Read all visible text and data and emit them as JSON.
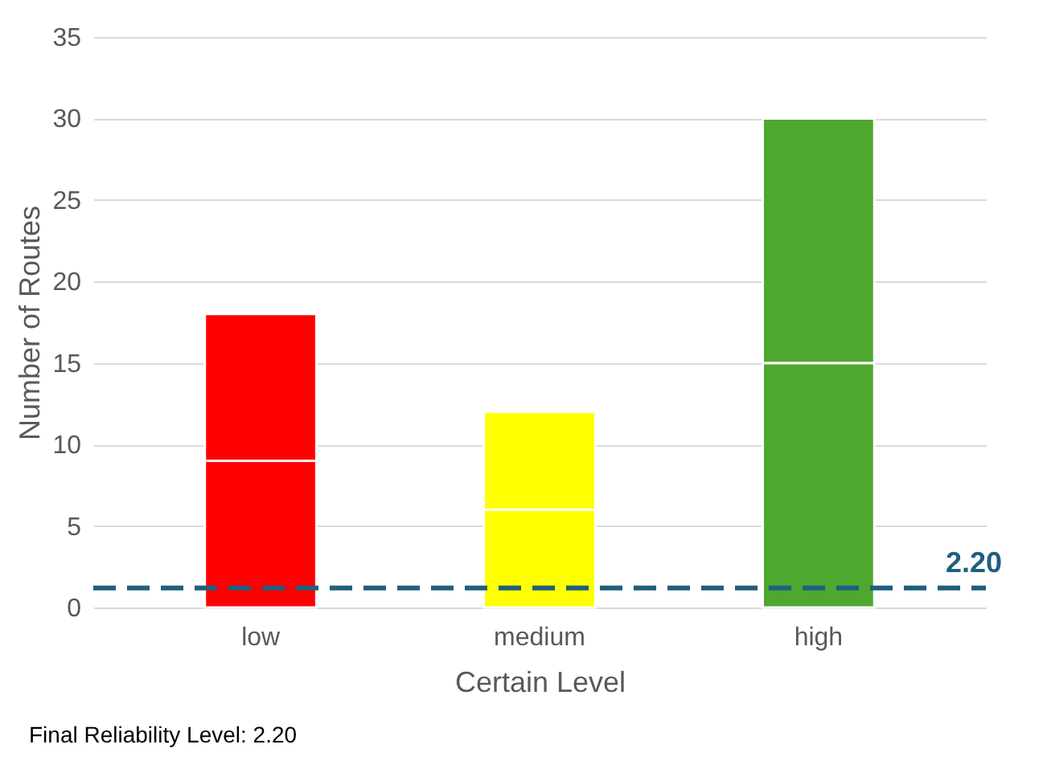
{
  "chart_data": {
    "type": "bar",
    "stacked": true,
    "xlabel": "Certain Level",
    "ylabel": "Number of Routes",
    "categories": [
      "low",
      "medium",
      "high"
    ],
    "series": [
      {
        "colors": [
          "#ff0000",
          "#ffff00",
          "#4ea72e"
        ],
        "values": [
          9,
          6,
          15
        ]
      },
      {
        "colors": [
          "#ff0000",
          "#ffff00",
          "#4ea72e"
        ],
        "values": [
          9,
          6,
          15
        ]
      }
    ],
    "ylim": [
      0,
      35
    ],
    "yticks": [
      0,
      5,
      10,
      15,
      20,
      25,
      30,
      35
    ],
    "grid": "y",
    "ref_lines": [
      {
        "axis": "y",
        "value": 1.2,
        "color": "#1f5f7f",
        "line_style": "dashed"
      }
    ],
    "annotations": [
      {
        "text": "2.20",
        "y": 1.2
      },
      "Final Reliability Level: 2.20"
    ]
  }
}
